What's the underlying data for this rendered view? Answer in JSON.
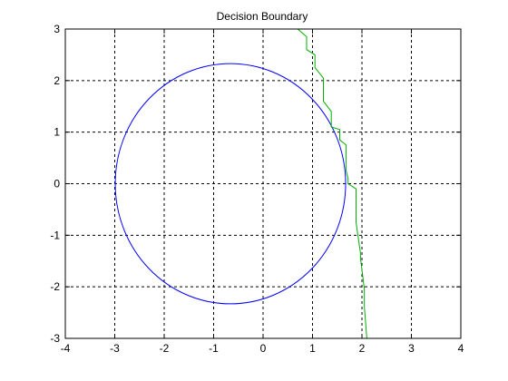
{
  "chart_data": {
    "type": "line",
    "title": "Decision Boundary",
    "xlabel": "",
    "ylabel": "",
    "xlim": [
      -4,
      4
    ],
    "ylim": [
      -3,
      3
    ],
    "x_ticks": [
      -4,
      -3,
      -2,
      -1,
      0,
      1,
      2,
      3,
      4
    ],
    "y_ticks": [
      -3,
      -2,
      -1,
      0,
      1,
      2,
      3
    ],
    "x_tick_labels": [
      "-4",
      "-3",
      "-2",
      "-1",
      "0",
      "1",
      "2",
      "3",
      "4"
    ],
    "y_tick_labels": [
      "-3",
      "-2",
      "-1",
      "0",
      "1",
      "2",
      "3"
    ],
    "grid": true,
    "series": [
      {
        "shape": "circle",
        "center": [
          -0.66,
          0.0
        ],
        "radius": 2.33,
        "color": "#0000ff"
      },
      {
        "shape": "polyline",
        "color": "#00b000",
        "x": [
          0.7,
          0.88,
          0.88,
          1.05,
          1.05,
          1.22,
          1.22,
          1.38,
          1.38,
          1.55,
          1.55,
          1.68,
          1.68,
          1.72,
          1.72,
          1.88,
          1.88,
          1.97,
          1.97,
          2.05,
          2.05,
          2.1
        ],
        "y": [
          3.0,
          2.85,
          2.6,
          2.5,
          2.25,
          2.05,
          1.6,
          1.4,
          1.1,
          1.05,
          0.85,
          0.75,
          0.25,
          0.1,
          0.0,
          -0.1,
          -0.75,
          -1.35,
          -1.45,
          -2.05,
          -2.4,
          -3.0
        ]
      }
    ]
  }
}
